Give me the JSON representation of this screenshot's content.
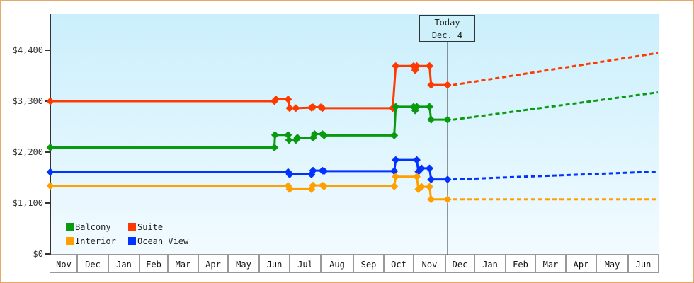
{
  "chart_data": {
    "type": "line",
    "title": "",
    "xlabel": "",
    "ylabel": "",
    "ylim": [
      0,
      4840
    ],
    "yticks": [
      {
        "value": 0,
        "label": "$0"
      },
      {
        "value": 1100,
        "label": "$1,100"
      },
      {
        "value": 2200,
        "label": "$2,200"
      },
      {
        "value": 3300,
        "label": "$3,300"
      },
      {
        "value": 4400,
        "label": "$4,400"
      }
    ],
    "months": [
      "Nov",
      "Dec",
      "Jan",
      "Feb",
      "Mar",
      "Apr",
      "May",
      "Jun",
      "Jul",
      "Aug",
      "Sep",
      "Oct",
      "Nov",
      "Dec",
      "Jan",
      "Feb",
      "Mar",
      "Apr",
      "May",
      "Jun"
    ],
    "grid": false,
    "legend_position": "bottom-left inside",
    "today_marker": {
      "line1": "Today",
      "line2": "Dec. 4",
      "x_month_index": 12.95
    },
    "series": [
      {
        "name": "Suite",
        "color": "#ff3a00",
        "history": [
          [
            0,
            3300
          ],
          [
            7.5,
            3300
          ],
          [
            7.55,
            3340
          ],
          [
            7.95,
            3340
          ],
          [
            8.0,
            3150
          ],
          [
            8.2,
            3150
          ],
          [
            8.7,
            3160
          ],
          [
            8.75,
            3170
          ],
          [
            9.0,
            3170
          ],
          [
            9.05,
            3150
          ],
          [
            11.3,
            3150
          ],
          [
            11.4,
            4060
          ],
          [
            12.0,
            4060
          ],
          [
            12.05,
            3970
          ],
          [
            12.1,
            4060
          ],
          [
            12.5,
            4060
          ],
          [
            12.55,
            3650
          ],
          [
            12.95,
            3650
          ]
        ],
        "forecast": [
          [
            12.95,
            3650
          ],
          [
            20,
            4340
          ]
        ]
      },
      {
        "name": "Balcony",
        "color": "#0a9a10",
        "history": [
          [
            0,
            2300
          ],
          [
            7.5,
            2300
          ],
          [
            7.52,
            2570
          ],
          [
            7.95,
            2570
          ],
          [
            7.98,
            2460
          ],
          [
            8.2,
            2460
          ],
          [
            8.25,
            2510
          ],
          [
            8.75,
            2510
          ],
          [
            8.8,
            2590
          ],
          [
            9.05,
            2590
          ],
          [
            9.1,
            2560
          ],
          [
            11.35,
            2560
          ],
          [
            11.4,
            3180
          ],
          [
            12.0,
            3180
          ],
          [
            12.05,
            3100
          ],
          [
            12.1,
            3180
          ],
          [
            12.5,
            3180
          ],
          [
            12.55,
            2900
          ],
          [
            12.95,
            2900
          ]
        ],
        "forecast": [
          [
            12.95,
            2900
          ],
          [
            20,
            3490
          ]
        ]
      },
      {
        "name": "Ocean View",
        "color": "#0033ff",
        "history": [
          [
            0,
            1770
          ],
          [
            7.5,
            1770
          ],
          [
            7.95,
            1770
          ],
          [
            8.0,
            1720
          ],
          [
            8.7,
            1720
          ],
          [
            8.75,
            1800
          ],
          [
            9.05,
            1800
          ],
          [
            9.1,
            1790
          ],
          [
            11.35,
            1790
          ],
          [
            11.4,
            2030
          ],
          [
            12.1,
            2030
          ],
          [
            12.15,
            1780
          ],
          [
            12.25,
            1850
          ],
          [
            12.5,
            1850
          ],
          [
            12.55,
            1610
          ],
          [
            12.95,
            1610
          ]
        ],
        "forecast": [
          [
            12.95,
            1610
          ],
          [
            20,
            1780
          ]
        ]
      },
      {
        "name": "Interior",
        "color": "#ffa000",
        "history": [
          [
            0,
            1470
          ],
          [
            7.5,
            1470
          ],
          [
            7.95,
            1470
          ],
          [
            8.0,
            1400
          ],
          [
            8.7,
            1400
          ],
          [
            8.75,
            1480
          ],
          [
            9.05,
            1480
          ],
          [
            9.1,
            1460
          ],
          [
            11.35,
            1460
          ],
          [
            11.4,
            1670
          ],
          [
            12.1,
            1670
          ],
          [
            12.15,
            1400
          ],
          [
            12.25,
            1450
          ],
          [
            12.5,
            1450
          ],
          [
            12.55,
            1180
          ],
          [
            12.95,
            1180
          ]
        ],
        "forecast": [
          [
            12.95,
            1180
          ],
          [
            20,
            1180
          ]
        ]
      }
    ]
  },
  "legend": [
    {
      "label": "Balcony",
      "color": "#0a9a10"
    },
    {
      "label": "Suite",
      "color": "#ff3a00"
    },
    {
      "label": "Interior",
      "color": "#ffa000"
    },
    {
      "label": "Ocean View",
      "color": "#0033ff"
    }
  ],
  "today": {
    "line1": "Today",
    "line2": "Dec. 4"
  }
}
